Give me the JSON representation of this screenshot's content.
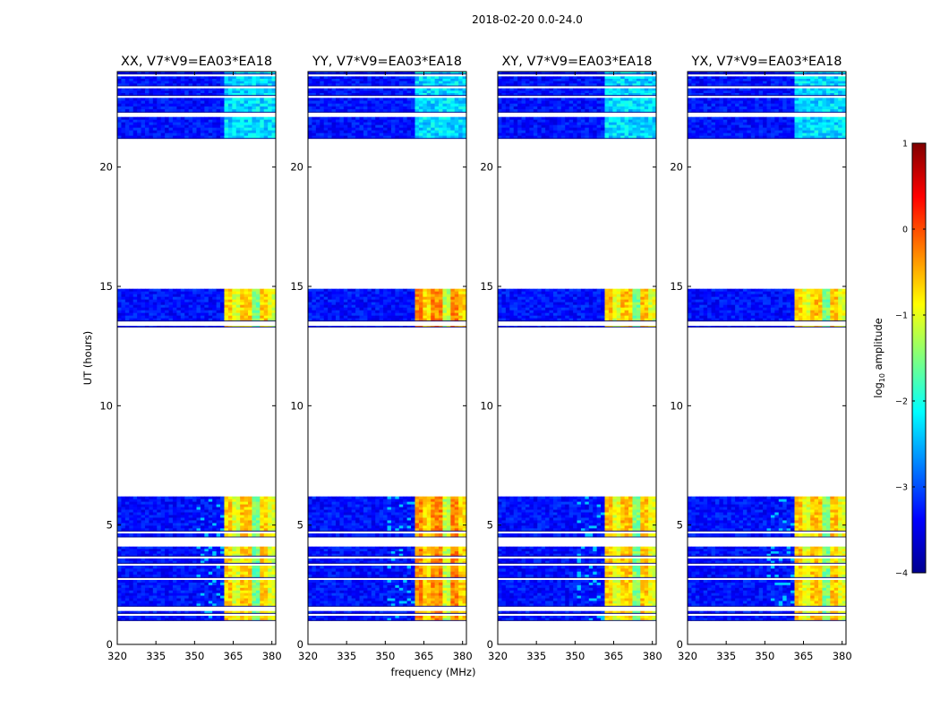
{
  "chart_data": {
    "type": "heatmap",
    "suptitle": "2018-02-20 0.0-24.0",
    "xlabel": "frequency (MHz)",
    "ylabel": "UT (hours)",
    "xlim": [
      320,
      381.5
    ],
    "ylim": [
      0,
      24
    ],
    "xticks": [
      320,
      335,
      350,
      365,
      380
    ],
    "yticks": [
      0,
      5,
      10,
      15,
      20
    ],
    "panels": [
      {
        "title": "XX, V7*V9=EA03*EA18",
        "polarization": "XX",
        "strong_level": -0.8
      },
      {
        "title": "YY, V7*V9=EA03*EA18",
        "polarization": "YY",
        "strong_level": -0.45
      },
      {
        "title": "XY, V7*V9=EA03*EA18",
        "polarization": "XY",
        "strong_level": -0.75
      },
      {
        "title": "YX, V7*V9=EA03*EA18",
        "polarization": "YX",
        "strong_level": -0.75
      }
    ],
    "data_segments_ut_hours": [
      [
        1.0,
        1.2
      ],
      [
        1.3,
        1.4
      ],
      [
        1.6,
        2.7
      ],
      [
        2.8,
        3.3
      ],
      [
        3.4,
        3.6
      ],
      [
        3.7,
        4.1
      ],
      [
        4.5,
        4.65
      ],
      [
        4.75,
        6.2
      ],
      [
        13.3,
        13.35
      ],
      [
        13.55,
        14.9
      ],
      [
        21.2,
        22.1
      ],
      [
        22.3,
        22.9
      ],
      [
        23.0,
        23.3
      ],
      [
        23.4,
        23.8
      ],
      [
        23.9,
        24.0
      ]
    ],
    "strong_band_mhz": [
      362,
      381
    ],
    "colormap": "jet",
    "colorbar": {
      "label": "log10 amplitude",
      "range": [
        -4,
        1
      ],
      "ticks": [
        1,
        0,
        -1,
        -2,
        -3,
        -4
      ],
      "tick_labels": [
        "1",
        "0",
        "−1",
        "−2",
        "−3",
        "−4"
      ]
    }
  }
}
